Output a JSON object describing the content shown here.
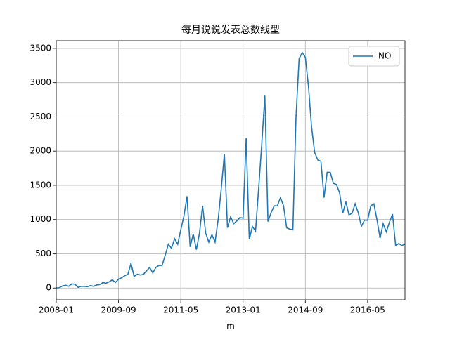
{
  "chart_data": {
    "type": "line",
    "title": "每月说说发表总数线型",
    "x_label": "m",
    "x": [
      "2008-01",
      "2008-02",
      "2008-03",
      "2008-04",
      "2008-05",
      "2008-06",
      "2008-07",
      "2008-08",
      "2008-09",
      "2008-10",
      "2008-11",
      "2008-12",
      "2009-01",
      "2009-02",
      "2009-03",
      "2009-04",
      "2009-05",
      "2009-06",
      "2009-07",
      "2009-08",
      "2009-09",
      "2009-10",
      "2009-11",
      "2009-12",
      "2010-01",
      "2010-02",
      "2010-03",
      "2010-04",
      "2010-05",
      "2010-06",
      "2010-07",
      "2010-08",
      "2010-09",
      "2010-10",
      "2010-11",
      "2010-12",
      "2011-01",
      "2011-02",
      "2011-03",
      "2011-04",
      "2011-05",
      "2011-06",
      "2011-07",
      "2011-08",
      "2011-09",
      "2011-10",
      "2011-11",
      "2011-12",
      "2012-01",
      "2012-02",
      "2012-03",
      "2012-04",
      "2012-05",
      "2012-06",
      "2012-07",
      "2012-08",
      "2012-09",
      "2012-10",
      "2012-11",
      "2012-12",
      "2013-01",
      "2013-02",
      "2013-03",
      "2013-04",
      "2013-05",
      "2013-06",
      "2013-07",
      "2013-08",
      "2013-09",
      "2013-10",
      "2013-11",
      "2013-12",
      "2014-01",
      "2014-02",
      "2014-03",
      "2014-04",
      "2014-05",
      "2014-06",
      "2014-07",
      "2014-08",
      "2014-09",
      "2014-10",
      "2014-11",
      "2014-12",
      "2015-01",
      "2015-02",
      "2015-03",
      "2015-04",
      "2015-05",
      "2015-06",
      "2015-07",
      "2015-08",
      "2015-09",
      "2015-10",
      "2015-11",
      "2015-12",
      "2016-01",
      "2016-02",
      "2016-03",
      "2016-04",
      "2016-05",
      "2016-06",
      "2016-07",
      "2016-08",
      "2016-09",
      "2016-10",
      "2016-11",
      "2016-12",
      "2017-01",
      "2017-02",
      "2017-03",
      "2017-04",
      "2017-05"
    ],
    "series": [
      {
        "name": "NO",
        "color": "#1f77b4",
        "values": [
          0,
          5,
          30,
          40,
          25,
          60,
          55,
          10,
          25,
          25,
          20,
          35,
          25,
          45,
          50,
          80,
          70,
          90,
          120,
          80,
          130,
          150,
          180,
          200,
          360,
          170,
          200,
          190,
          200,
          250,
          300,
          220,
          300,
          330,
          330,
          480,
          640,
          580,
          720,
          640,
          850,
          1050,
          1340,
          600,
          790,
          560,
          800,
          1200,
          800,
          670,
          780,
          670,
          1000,
          1450,
          1960,
          880,
          1040,
          940,
          980,
          1030,
          1020,
          2190,
          710,
          900,
          830,
          1450,
          2100,
          2810,
          970,
          1100,
          1200,
          1200,
          1320,
          1200,
          880,
          860,
          850,
          2500,
          3350,
          3440,
          3370,
          2950,
          2350,
          1980,
          1870,
          1850,
          1320,
          1690,
          1690,
          1530,
          1510,
          1390,
          1090,
          1260,
          1070,
          1090,
          1230,
          1100,
          900,
          990,
          990,
          1200,
          1230,
          1000,
          730,
          940,
          820,
          960,
          1080,
          620,
          650,
          620,
          640
        ]
      }
    ],
    "xlim": [
      "2008-01",
      "2017-05"
    ],
    "xticks": [
      "2008-01",
      "2009-09",
      "2011-05",
      "2013-01",
      "2014-09",
      "2016-05"
    ],
    "ylim": [
      -172,
      3612
    ],
    "yticks": [
      0,
      500,
      1000,
      1500,
      2000,
      2500,
      3000,
      3500
    ],
    "grid": true,
    "legend": "upper right"
  }
}
